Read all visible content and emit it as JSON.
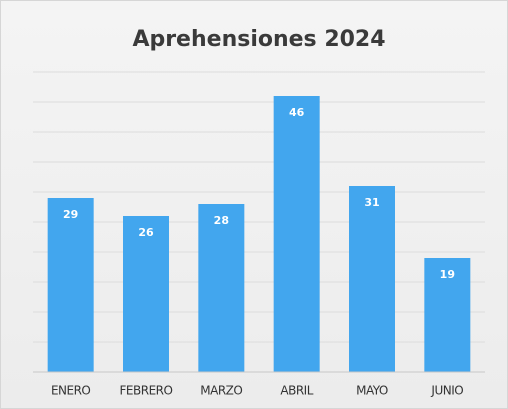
{
  "chart_data": {
    "type": "bar",
    "title": "Aprehensiones 2024",
    "categories": [
      "ENERO",
      "FEBRERO",
      "MARZO",
      "ABRIL",
      "MAYO",
      "JUNIO"
    ],
    "values": [
      29,
      26,
      28,
      46,
      31,
      19
    ],
    "color": "#42a6ee",
    "ylim": [
      0,
      50
    ],
    "yticks": [
      0,
      5,
      10,
      15,
      20,
      25,
      30,
      35,
      40,
      45,
      50
    ],
    "grid": true
  }
}
